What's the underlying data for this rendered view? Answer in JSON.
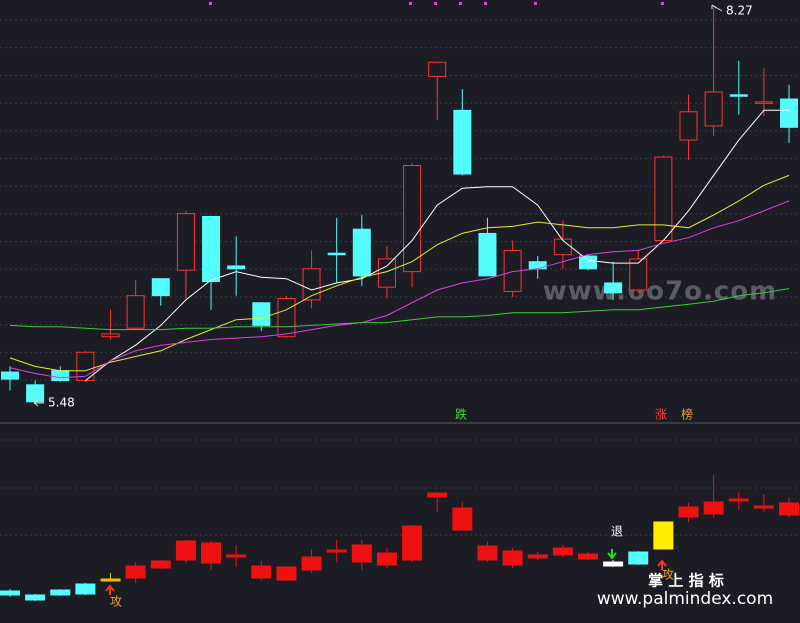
{
  "chart_data": [
    {
      "type": "candlestick",
      "ylim": [
        5.34,
        8.33
      ],
      "up_color": "#ff3232",
      "down_color": "#54fcfc",
      "open": [
        5.7,
        5.61,
        5.71,
        5.64,
        5.95,
        6.01,
        6.36,
        6.42,
        6.8,
        6.45,
        6.19,
        5.95,
        6.21,
        6.54,
        6.71,
        6.3,
        6.41,
        7.79,
        7.55,
        6.68,
        6.27,
        6.48,
        6.53,
        6.52,
        6.33,
        6.28,
        6.63,
        7.34,
        7.44,
        7.66,
        7.6,
        7.63
      ],
      "high": [
        5.74,
        5.64,
        5.74,
        5.85,
        6.14,
        6.35,
        6.36,
        6.84,
        6.8,
        6.66,
        6.19,
        6.24,
        6.56,
        6.79,
        6.81,
        6.59,
        7.18,
        7.89,
        7.7,
        6.79,
        6.63,
        6.52,
        6.77,
        6.53,
        6.48,
        6.56,
        7.23,
        7.66,
        8.27,
        7.9,
        7.85,
        7.73
      ],
      "low": [
        5.57,
        5.48,
        5.63,
        5.63,
        5.93,
        6.0,
        6.17,
        6.21,
        6.14,
        6.24,
        5.99,
        5.94,
        6.15,
        6.33,
        6.31,
        6.22,
        6.3,
        7.48,
        7.09,
        6.38,
        6.23,
        6.36,
        6.43,
        6.42,
        6.21,
        6.26,
        6.63,
        7.2,
        7.37,
        7.52,
        7.51,
        7.32
      ],
      "close": [
        5.65,
        5.49,
        5.64,
        5.84,
        5.97,
        6.24,
        6.24,
        6.82,
        6.34,
        6.43,
        6.03,
        6.22,
        6.43,
        6.53,
        6.38,
        6.5,
        7.16,
        7.89,
        7.1,
        6.38,
        6.56,
        6.43,
        6.64,
        6.43,
        6.26,
        6.5,
        7.22,
        7.54,
        7.68,
        7.65,
        7.61,
        7.43
      ],
      "series": [
        {
          "color": "#ffffff",
          "values": [
            null,
            null,
            null,
            5.64,
            5.78,
            5.89,
            6.03,
            6.21,
            6.35,
            6.41,
            6.37,
            6.36,
            6.28,
            6.33,
            6.36,
            6.45,
            6.63,
            6.88,
            7.0,
            7.01,
            7.01,
            6.88,
            6.63,
            6.49,
            6.47,
            6.47,
            6.63,
            6.84,
            7.09,
            7.34,
            7.55,
            7.55
          ]
        },
        {
          "color": "#e8e83c",
          "values": [
            5.8,
            5.74,
            5.71,
            5.71,
            5.77,
            5.81,
            5.85,
            5.93,
            6.0,
            6.07,
            6.08,
            6.14,
            6.24,
            6.31,
            6.37,
            6.41,
            6.48,
            6.6,
            6.68,
            6.72,
            6.73,
            6.76,
            6.74,
            6.72,
            6.72,
            6.74,
            6.74,
            6.72,
            6.81,
            6.91,
            7.02,
            7.09
          ]
        },
        {
          "color": "#e040e0",
          "values": [
            5.73,
            5.69,
            5.66,
            5.67,
            5.78,
            5.85,
            5.89,
            5.91,
            5.93,
            5.94,
            5.95,
            5.97,
            6.0,
            6.03,
            6.05,
            6.1,
            6.19,
            6.28,
            6.33,
            6.36,
            6.41,
            6.43,
            6.48,
            6.53,
            6.55,
            6.56,
            6.61,
            6.65,
            6.72,
            6.77,
            6.84,
            6.91
          ]
        },
        {
          "color": "#3cc83c",
          "values": [
            6.03,
            6.02,
            6.02,
            6.01,
            6.0,
            6.0,
            6.0,
            6.01,
            6.01,
            6.02,
            6.02,
            6.02,
            6.03,
            6.04,
            6.05,
            6.05,
            6.07,
            6.09,
            6.09,
            6.1,
            6.12,
            6.12,
            6.12,
            6.13,
            6.14,
            6.14,
            6.16,
            6.18,
            6.2,
            6.24,
            6.26,
            6.29
          ]
        }
      ],
      "annotations": [
        {
          "text": "8.27"
        },
        {
          "text": "5.48"
        },
        {
          "text": "跌"
        },
        {
          "text": "涨"
        },
        {
          "text": "榜"
        }
      ],
      "watermark": "www.6o7o.com"
    },
    {
      "type": "candlestick",
      "ylim": [
        0,
        100
      ],
      "open": [
        14,
        11.5,
        14,
        14.5,
        21,
        22.5,
        27.5,
        31.5,
        30,
        33,
        22.5,
        21.5,
        26.5,
        35.5,
        30.5,
        29,
        31.5,
        63,
        46.5,
        31.5,
        29,
        32.5,
        34,
        32,
        28.5,
        29.5,
        37,
        53,
        54.5,
        61,
        57.5,
        54
      ],
      "high": [
        17,
        14.5,
        17,
        20,
        25,
        30.5,
        31.5,
        41.5,
        41,
        39,
        31,
        28,
        37,
        41.5,
        41.5,
        37.5,
        49,
        65,
        60.5,
        40.5,
        37.5,
        35.5,
        39,
        35.5,
        31.5,
        36,
        50.5,
        60,
        74,
        65.5,
        64.5,
        63
      ],
      "low": [
        13,
        11,
        13.5,
        14,
        21,
        20,
        27,
        30,
        26.5,
        28,
        21.5,
        21,
        25,
        30.5,
        26.5,
        27.5,
        30.5,
        55.5,
        46.5,
        30.5,
        27.5,
        31.5,
        33,
        31.5,
        28,
        29,
        37,
        50.5,
        52.5,
        56.5,
        55.5,
        52.5
      ],
      "close": [
        16,
        14,
        16.5,
        19.5,
        22,
        28.5,
        31,
        41,
        40,
        34,
        28.5,
        28,
        33,
        36.5,
        39,
        35,
        48.5,
        65,
        57.5,
        38.5,
        36,
        34,
        37.5,
        34.5,
        30.5,
        35.5,
        50.5,
        58,
        60.5,
        62,
        58.5,
        60
      ],
      "colors": [
        "#54fcfc",
        "#54fcfc",
        "#54fcfc",
        "#54fcfc",
        "#f0c000",
        "#ee1111",
        "#ee1111",
        "#ee1111",
        "#ee1111",
        "#ee1111",
        "#ee1111",
        "#ee1111",
        "#ee1111",
        "#ee1111",
        "#ee1111",
        "#ee1111",
        "#ee1111",
        "#ee1111",
        "#ee1111",
        "#ee1111",
        "#ee1111",
        "#ee1111",
        "#ee1111",
        "#ee1111",
        "#ffffff",
        "#54fcfc",
        "#ffee00",
        "#ee1111",
        "#ee1111",
        "#ee1111",
        "#ee1111",
        "#ee1111"
      ],
      "annotations": [
        {
          "text": "攻"
        },
        {
          "text": "退"
        },
        {
          "text": "攻"
        }
      ],
      "footer": {
        "title": "掌 上 指 标",
        "url": "www.palmindex.com"
      }
    }
  ]
}
